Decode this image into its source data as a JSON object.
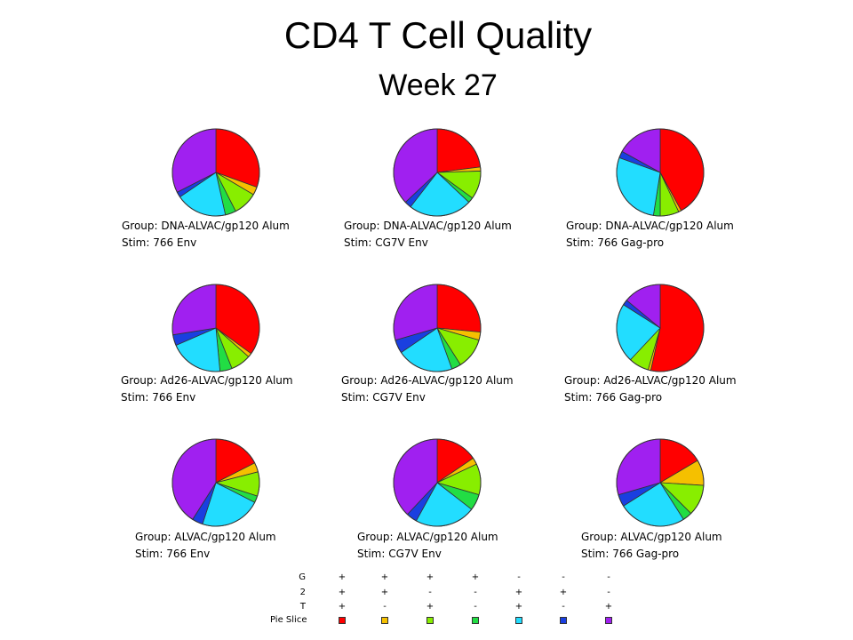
{
  "title": "CD4 T Cell Quality",
  "subtitle": "Week 27",
  "chart_data": {
    "type": "pie",
    "slice_colors": [
      "#ff0000",
      "#f5c000",
      "#88ee00",
      "#22dd44",
      "#22ddff",
      "#1a3fe0",
      "#a020f0"
    ],
    "panels": [
      {
        "group_label": "Group: DNA-ALVAC/gp120 Alum",
        "stim_label": "Stim: 766 Env",
        "values": [
          0.305,
          0.03,
          0.09,
          0.04,
          0.19,
          0.02,
          0.325
        ]
      },
      {
        "group_label": "Group: DNA-ALVAC/gp120 Alum",
        "stim_label": "Stim: CG7V Env",
        "values": [
          0.23,
          0.015,
          0.105,
          0.02,
          0.235,
          0.025,
          0.37
        ]
      },
      {
        "group_label": "Group: DNA-ALVAC/gp120 Alum",
        "stim_label": "Stim: 766 Gag-pro",
        "values": [
          0.42,
          0.01,
          0.07,
          0.025,
          0.28,
          0.025,
          0.17
        ]
      },
      {
        "group_label": "Group: Ad26-ALVAC/gp120 Alum",
        "stim_label": "Stim: 766 Env",
        "values": [
          0.35,
          0.015,
          0.075,
          0.045,
          0.2,
          0.04,
          0.275
        ]
      },
      {
        "group_label": "Group: Ad26-ALVAC/gp120 Alum",
        "stim_label": "Stim: CG7V Env",
        "values": [
          0.265,
          0.03,
          0.115,
          0.035,
          0.21,
          0.05,
          0.295
        ]
      },
      {
        "group_label": "Group: Ad26-ALVAC/gp120 Alum",
        "stim_label": "Stim: 766 Gag-pro",
        "values": [
          0.535,
          0.01,
          0.075,
          0.0,
          0.22,
          0.02,
          0.14
        ]
      },
      {
        "group_label": "Group: ALVAC/gp120 Alum",
        "stim_label": "Stim: 766 Env",
        "values": [
          0.175,
          0.035,
          0.09,
          0.025,
          0.225,
          0.04,
          0.41
        ]
      },
      {
        "group_label": "Group: ALVAC/gp120 Alum",
        "stim_label": "Stim: CG7V Env",
        "values": [
          0.155,
          0.025,
          0.115,
          0.06,
          0.225,
          0.04,
          0.38
        ]
      },
      {
        "group_label": "Group: ALVAC/gp120 Alum",
        "stim_label": "Stim: 766 Gag-pro",
        "values": [
          0.165,
          0.095,
          0.115,
          0.035,
          0.25,
          0.045,
          0.295
        ]
      }
    ],
    "legend": {
      "row_labels": [
        "G",
        "2",
        "T",
        "Pie Slice"
      ],
      "columns": [
        {
          "G": "+",
          "2": "+",
          "T": "+"
        },
        {
          "G": "+",
          "2": "+",
          "T": "-"
        },
        {
          "G": "+",
          "2": "-",
          "T": "+"
        },
        {
          "G": "+",
          "2": "-",
          "T": "-"
        },
        {
          "G": "-",
          "2": "+",
          "T": "+"
        },
        {
          "G": "-",
          "2": "+",
          "T": "-"
        },
        {
          "G": "-",
          "2": "-",
          "T": "+"
        }
      ]
    }
  }
}
